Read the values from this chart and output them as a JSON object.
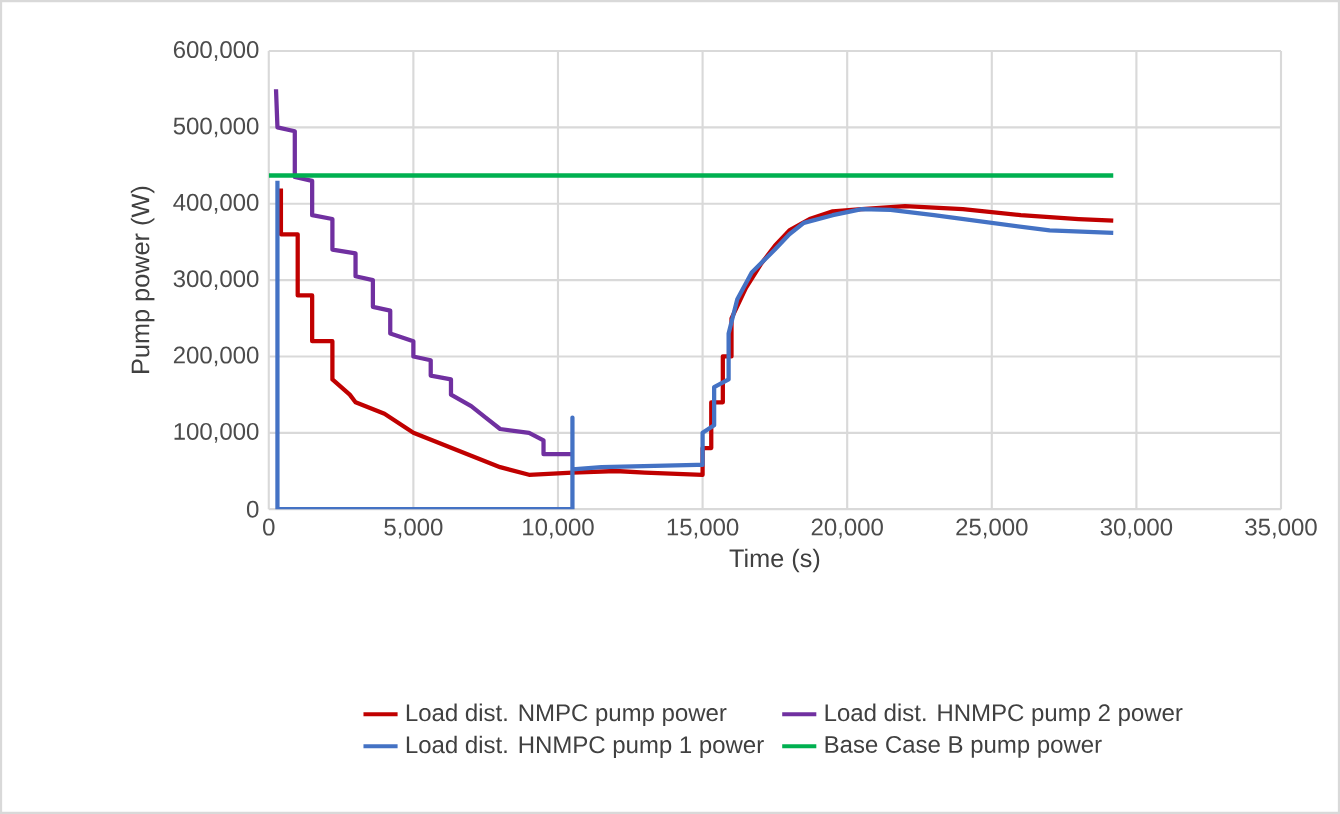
{
  "chart_data": {
    "type": "line",
    "xlabel": "Time (s)",
    "ylabel": "Pump power (W)",
    "xlim": [
      0,
      35000
    ],
    "ylim": [
      0,
      600000
    ],
    "xticks": [
      0,
      {
        "value": 5000,
        "label": "5,000"
      },
      {
        "value": 10000,
        "label": "10,000"
      },
      {
        "value": 15000,
        "label": "15,000"
      },
      {
        "value": 20000,
        "label": "20,000"
      },
      {
        "value": 25000,
        "label": "25,000"
      },
      {
        "value": 30000,
        "label": "30,000"
      },
      {
        "value": 35000,
        "label": "35,000"
      }
    ],
    "yticks": [
      0,
      {
        "value": 100000,
        "label": "100,000"
      },
      {
        "value": 200000,
        "label": "200,000"
      },
      {
        "value": 300000,
        "label": "300,000"
      },
      {
        "value": 400000,
        "label": "400,000"
      },
      {
        "value": 500000,
        "label": "500,000"
      },
      {
        "value": 600000,
        "label": "600,000"
      }
    ],
    "grid": true,
    "legend": "bottom",
    "marker": "none",
    "line_style": "solid",
    "series": [
      {
        "name": "Load dist. NMPC pump power",
        "color": "#c00000",
        "x": [
          420,
          420,
          1000,
          1000,
          1500,
          1500,
          2200,
          2200,
          2800,
          3000,
          4000,
          5000,
          6000,
          7000,
          8000,
          9000,
          10500,
          12000,
          13000,
          15000,
          15000,
          15300,
          15300,
          15700,
          15700,
          16000,
          16000,
          16500,
          17000,
          17500,
          18000,
          18700,
          19500,
          20500,
          22000,
          24000,
          26000,
          28000,
          29200
        ],
        "values": [
          420000,
          360000,
          360000,
          280000,
          280000,
          220000,
          220000,
          170000,
          150000,
          140000,
          125000,
          100000,
          85000,
          70000,
          55000,
          45000,
          48000,
          50000,
          48000,
          45000,
          80000,
          80000,
          140000,
          140000,
          200000,
          200000,
          250000,
          290000,
          320000,
          345000,
          365000,
          380000,
          390000,
          393000,
          397000,
          393000,
          385000,
          380000,
          378000
        ]
      },
      {
        "name": "Load dist. HNMPC pump 2 power",
        "color": "#7030a0",
        "x": [
          250,
          300,
          900,
          900,
          1500,
          1500,
          2200,
          2200,
          3000,
          3000,
          3600,
          3600,
          4200,
          4200,
          5000,
          5000,
          5600,
          5600,
          6300,
          6300,
          7000,
          7500,
          8000,
          9000,
          9500,
          9500,
          10500
        ],
        "values": [
          550000,
          500000,
          495000,
          435000,
          430000,
          385000,
          380000,
          340000,
          335000,
          305000,
          300000,
          265000,
          260000,
          230000,
          220000,
          200000,
          195000,
          175000,
          170000,
          150000,
          135000,
          120000,
          105000,
          100000,
          90000,
          72000,
          72000
        ]
      },
      {
        "name": "Load dist. HNMPC pump 1 power",
        "color": "#4472c4",
        "x": [
          300,
          300,
          10500,
          10500,
          10500,
          11500,
          14800,
          15000,
          15000,
          15400,
          15400,
          15900,
          15900,
          16200,
          16700,
          17500,
          18000,
          18500,
          19500,
          20500,
          21500,
          23000,
          25000,
          27000,
          29200
        ],
        "values": [
          430000,
          0,
          0,
          120000,
          52000,
          55000,
          58000,
          58000,
          100000,
          110000,
          160000,
          170000,
          230000,
          275000,
          310000,
          340000,
          360000,
          375000,
          385000,
          393000,
          392000,
          385000,
          375000,
          365000,
          362000
        ]
      },
      {
        "name": "Base Case B pump power",
        "color": "#00b050",
        "x": [
          0,
          29200
        ],
        "values": [
          437000,
          437000
        ]
      }
    ]
  }
}
